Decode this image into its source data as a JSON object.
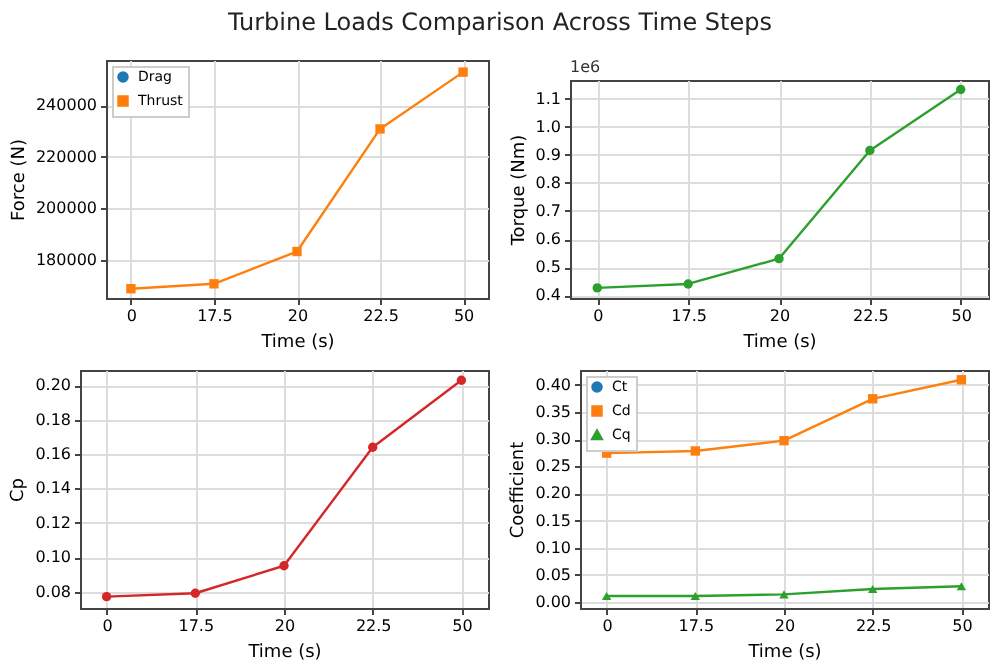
{
  "chart_data": [
    {
      "type": "line",
      "title": "Turbine Loads Comparison Across Time Steps",
      "xlabel": "Time (s)",
      "ylabel": "Force (N)",
      "categories": [
        "0",
        "17.5",
        "20",
        "22.5",
        "50"
      ],
      "series": [
        {
          "name": "Drag",
          "color": "#1f77b4",
          "marker": "circle",
          "values": [
            null,
            null,
            null,
            null,
            null
          ]
        },
        {
          "name": "Thrust",
          "color": "#ff7f0e",
          "marker": "square",
          "values": [
            168900,
            170800,
            183300,
            230800,
            252800
          ]
        }
      ],
      "ylim": [
        165300,
        257500
      ],
      "yticks": [
        180000,
        200000,
        220000,
        240000
      ],
      "grid": true,
      "legend": "top left"
    },
    {
      "type": "line",
      "xlabel": "Time (s)",
      "ylabel": "Torque (Nm)",
      "annotations": [
        "1e6"
      ],
      "categories": [
        "0",
        "17.5",
        "20",
        "22.5",
        "50"
      ],
      "series": [
        {
          "color": "#2ca02c",
          "marker": "circle",
          "values": [
            0.426,
            0.44,
            0.53,
            0.915,
            1.132
          ]
        }
      ],
      "ylim": [
        0.39,
        1.166
      ],
      "yticks": [
        {
          "value": 0.4,
          "label": "0.4"
        },
        {
          "value": 0.5,
          "label": "0.5"
        },
        {
          "value": 0.6,
          "label": "0.6"
        },
        {
          "value": 0.7,
          "label": "0.7"
        },
        {
          "value": 0.8,
          "label": "0.8"
        },
        {
          "value": 0.9,
          "label": "0.9"
        },
        {
          "value": 1.0,
          "label": "1.0"
        },
        {
          "value": 1.1,
          "label": "1.1"
        }
      ],
      "grid": true
    },
    {
      "type": "line",
      "xlabel": "Time (s)",
      "ylabel": "Cp",
      "categories": [
        "0",
        "17.5",
        "20",
        "22.5",
        "50"
      ],
      "series": [
        {
          "color": "#d62728",
          "marker": "circle",
          "values": [
            0.077,
            0.079,
            0.095,
            0.164,
            0.203
          ]
        }
      ],
      "ylim": [
        0.0704,
        0.209
      ],
      "yticks": [
        {
          "value": 0.08,
          "label": "0.08"
        },
        {
          "value": 0.1,
          "label": "0.10"
        },
        {
          "value": 0.12,
          "label": "0.12"
        },
        {
          "value": 0.14,
          "label": "0.14"
        },
        {
          "value": 0.16,
          "label": "0.16"
        },
        {
          "value": 0.18,
          "label": "0.18"
        },
        {
          "value": 0.2,
          "label": "0.20"
        }
      ],
      "grid": true
    },
    {
      "type": "line",
      "xlabel": "Time (s)",
      "ylabel": "Coefficient",
      "categories": [
        "0",
        "17.5",
        "20",
        "22.5",
        "50"
      ],
      "series": [
        {
          "name": "Ct",
          "color": "#1f77b4",
          "marker": "circle",
          "values": [
            null,
            null,
            null,
            null,
            null
          ]
        },
        {
          "name": "Cd",
          "color": "#ff7f0e",
          "marker": "square",
          "values": [
            0.274,
            0.278,
            0.297,
            0.374,
            0.409
          ]
        },
        {
          "name": "Cq",
          "color": "#2ca02c",
          "marker": "triangle",
          "values": [
            0.011,
            0.011,
            0.014,
            0.024,
            0.029
          ]
        }
      ],
      "ylim": [
        -0.011,
        0.427
      ],
      "yticks": [
        {
          "value": 0,
          "label": "0.00"
        },
        {
          "value": 0.05,
          "label": "0.05"
        },
        {
          "value": 0.1,
          "label": "0.10"
        },
        {
          "value": 0.15,
          "label": "0.15"
        },
        {
          "value": 0.2,
          "label": "0.20"
        },
        {
          "value": 0.25,
          "label": "0.25"
        },
        {
          "value": 0.3,
          "label": "0.30"
        },
        {
          "value": 0.35,
          "label": "0.35"
        },
        {
          "value": 0.4,
          "label": "0.40"
        }
      ],
      "grid": true,
      "legend": "top left"
    }
  ]
}
